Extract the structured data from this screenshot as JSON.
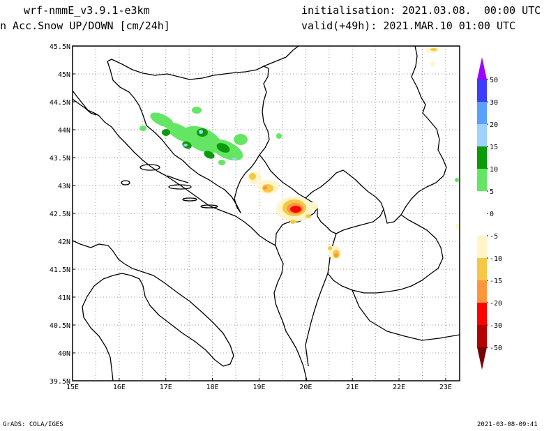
{
  "header": {
    "model": "wrf-nmmE_v3.9.1-e3km",
    "field": "n Acc.Snow UP/DOWN [cm/24h]",
    "init": "initialisation: 2021.03.08.  00:00 UTC",
    "valid": "valid(+49h): 2021.MAR.10 01:00 UTC"
  },
  "map": {
    "lat_labels": [
      "45.5N",
      "45N",
      "44.5N",
      "44N",
      "43.5N",
      "43N",
      "42.5N",
      "42N",
      "41.5N",
      "41N",
      "40.5N",
      "40N",
      "39.5N"
    ],
    "lon_labels": [
      "15E",
      "16E",
      "17E",
      "18E",
      "19E",
      "20E",
      "21E",
      "22E",
      "23E"
    ],
    "lat_range": [
      39.5,
      45.5
    ],
    "lon_range": [
      15.0,
      23.3
    ],
    "grid": "dotted"
  },
  "legend": {
    "labels": [
      "50",
      "30",
      "20",
      "15",
      "10",
      "5",
      "0",
      "-5",
      "-10",
      "-15",
      "-20",
      "-30",
      "-50"
    ],
    "colors": [
      "#a000ff",
      "#3c3cff",
      "#5aa0ff",
      "#a0d2ff",
      "#0a9a0a",
      "#64e664",
      "#ffffff",
      "#ffffff",
      "#fff5c8",
      "#f5c846",
      "#ff963c",
      "#ff0000",
      "#b40000",
      "#780000"
    ]
  },
  "footer": {
    "left": "GrADS: COLA/IGES",
    "right": "2021-03-08-09:41"
  }
}
